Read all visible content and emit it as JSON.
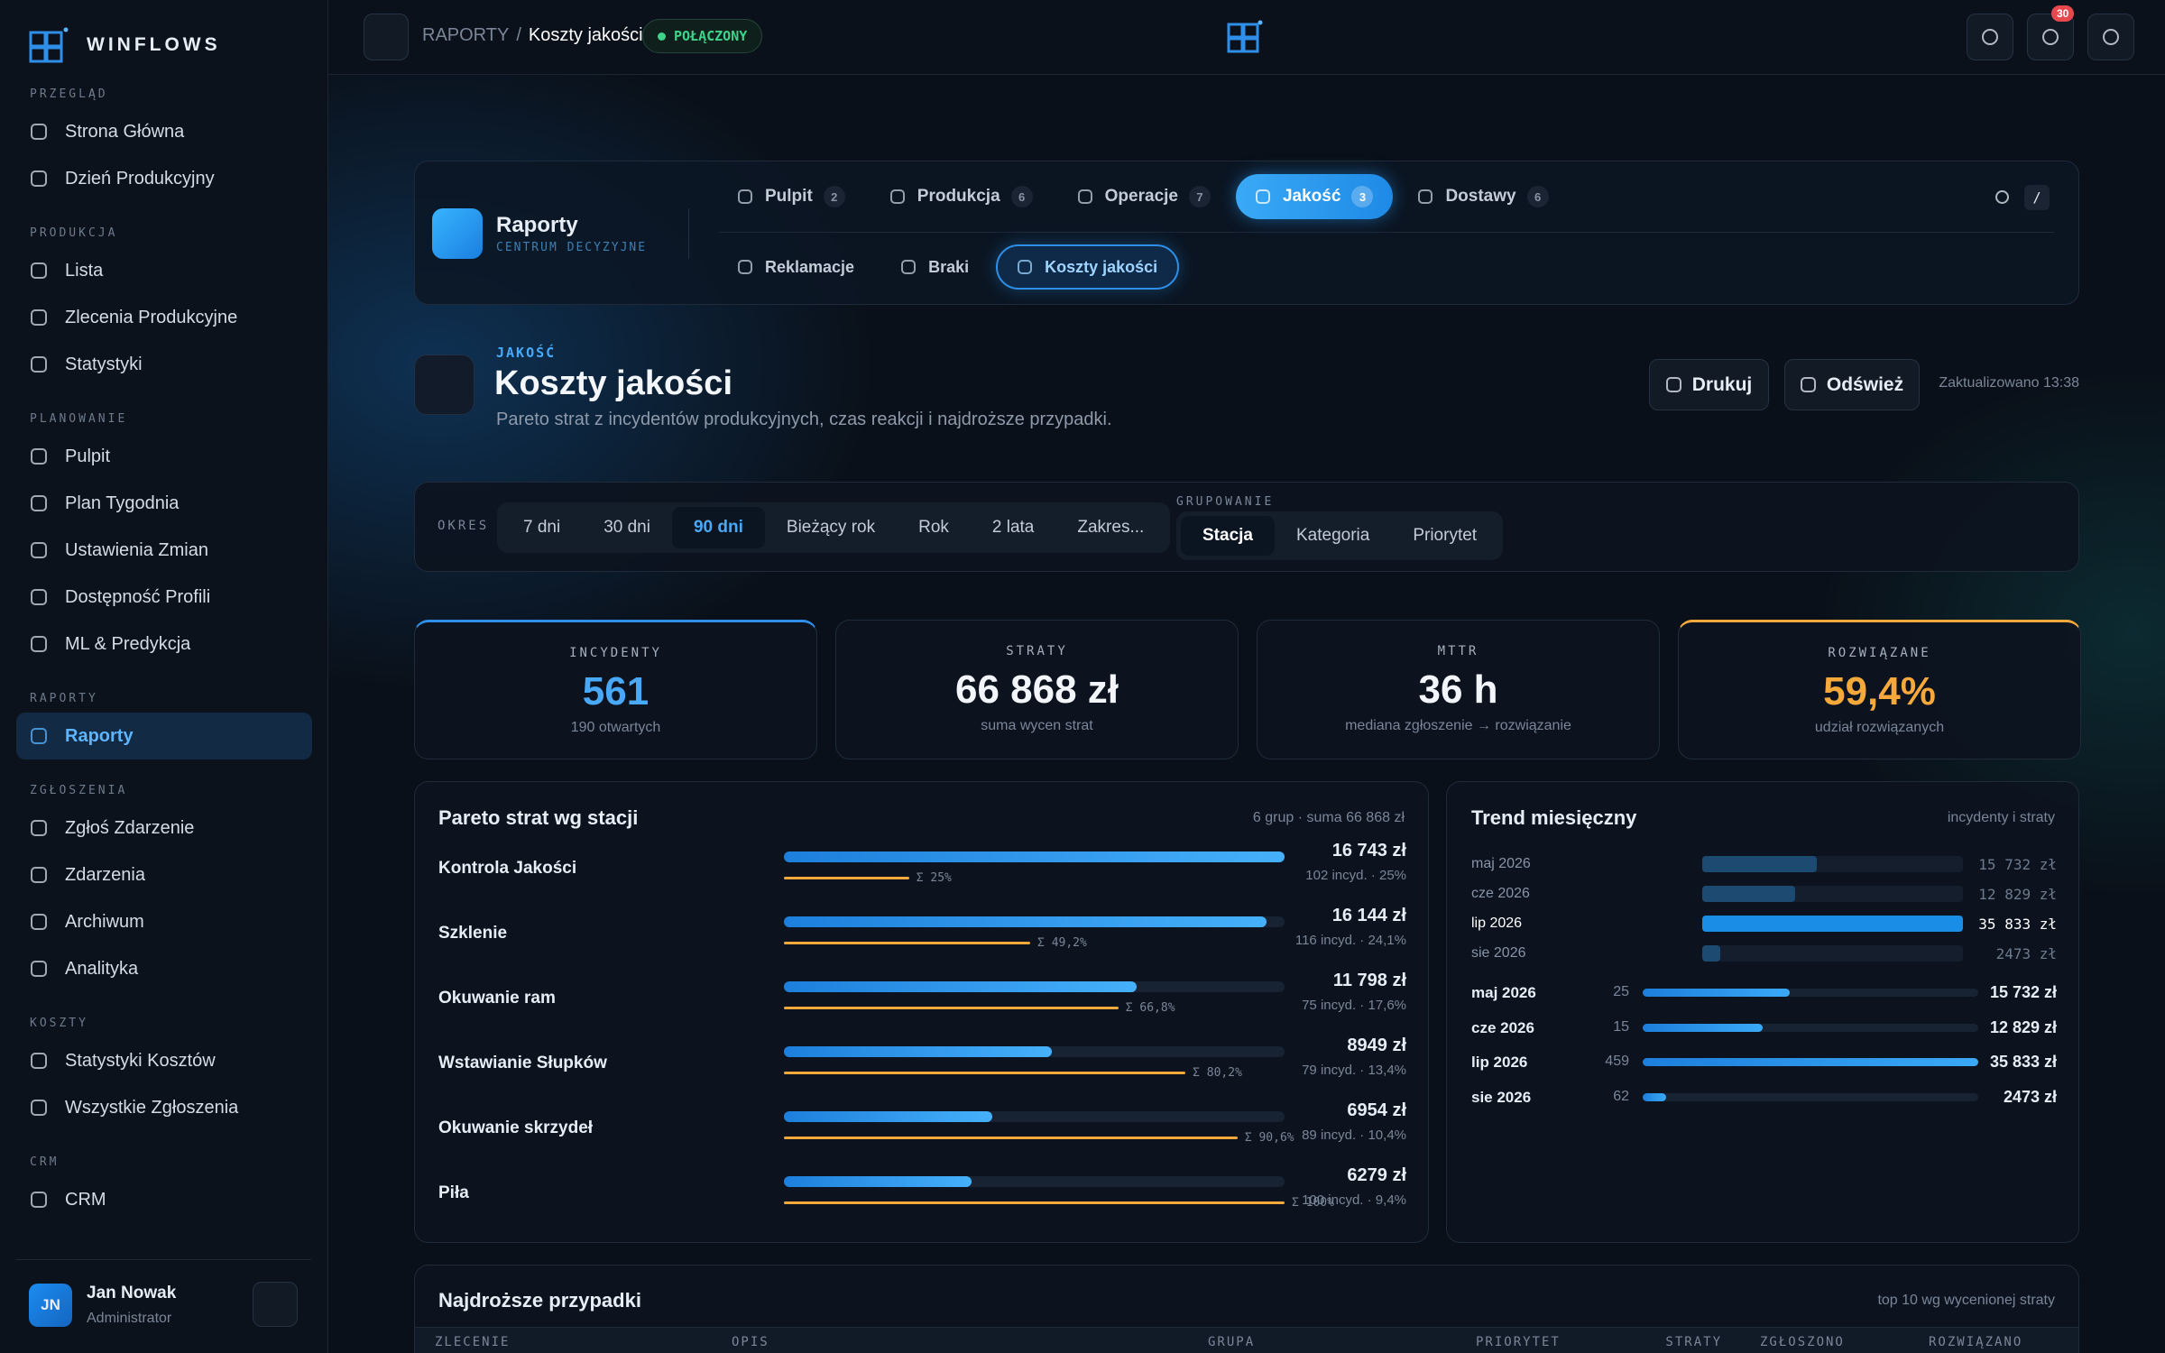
{
  "sidebar": {
    "brand": "WINFLOWS",
    "sections": [
      {
        "title": "PRZEGLĄD",
        "items": [
          {
            "label": "Strona Główna"
          },
          {
            "label": "Dzień Produkcyjny"
          }
        ]
      },
      {
        "title": "PRODUKCJA",
        "items": [
          {
            "label": "Lista"
          },
          {
            "label": "Zlecenia Produkcyjne"
          },
          {
            "label": "Statystyki"
          }
        ]
      },
      {
        "title": "PLANOWANIE",
        "items": [
          {
            "label": "Pulpit"
          },
          {
            "label": "Plan Tygodnia"
          },
          {
            "label": "Ustawienia Zmian"
          },
          {
            "label": "Dostępność Profili"
          },
          {
            "label": "ML & Predykcja"
          }
        ]
      },
      {
        "title": "RAPORTY",
        "items": [
          {
            "label": "Raporty",
            "active": true
          }
        ]
      },
      {
        "title": "ZGŁOSZENIA",
        "items": [
          {
            "label": "Zgłoś Zdarzenie"
          },
          {
            "label": "Zdarzenia"
          },
          {
            "label": "Archiwum"
          },
          {
            "label": "Analityka"
          }
        ]
      },
      {
        "title": "KOSZTY",
        "items": [
          {
            "label": "Statystyki Kosztów"
          },
          {
            "label": "Wszystkie Zgłoszenia"
          }
        ]
      },
      {
        "title": "CRM",
        "items": [
          {
            "label": "CRM"
          }
        ]
      }
    ],
    "user": {
      "initials": "JN",
      "name": "Jan Nowak",
      "role": "Administrator"
    }
  },
  "topbar": {
    "breadcrumb": {
      "section": "RAPORTY",
      "separator": "/",
      "current": "Koszty jakości"
    },
    "status": "POŁĄCZONY",
    "notifications": 30
  },
  "reports_panel": {
    "title": "Raporty",
    "subtitle": "CENTRUM DECYZYJNE",
    "tabs": [
      {
        "label": "Pulpit",
        "count": 2
      },
      {
        "label": "Produkcja",
        "count": 6
      },
      {
        "label": "Operacje",
        "count": 7
      },
      {
        "label": "Jakość",
        "count": 3
      },
      {
        "label": "Dostawy",
        "count": 6
      }
    ],
    "active_tab": 3,
    "search_key": "/",
    "subtabs": [
      "Reklamacje",
      "Braki",
      "Koszty jakości"
    ],
    "active_subtab": 2
  },
  "header": {
    "eyebrow": "JAKOŚĆ",
    "title": "Koszty jakości",
    "description": "Pareto strat z incydentów produkcyjnych, czas reakcji i najdroższe przypadki.",
    "buttons": [
      "Drukuj",
      "Odśwież"
    ],
    "updated": "Zaktualizowano 13:38"
  },
  "filters": {
    "period": {
      "label": "OKRES",
      "options": [
        "7 dni",
        "30 dni",
        "90 dni",
        "Bieżący rok",
        "Rok",
        "2 lata",
        "Zakres..."
      ],
      "active": 2
    },
    "grouping": {
      "label": "GRUPOWANIE",
      "options": [
        "Stacja",
        "Kategoria",
        "Priorytet"
      ],
      "active": 0
    }
  },
  "kpis": [
    {
      "label": "INCYDENTY",
      "value": "561",
      "sub": "190 otwartych",
      "color": "#4aa9f7",
      "accent": "#2f8fe8"
    },
    {
      "label": "STRATY",
      "value": "66 868 zł",
      "sub": "suma wycen strat",
      "color": "#f2f5f9"
    },
    {
      "label": "MTTR",
      "value": "36 h",
      "sub": "mediana zgłoszenie → rozwiązanie",
      "color": "#f2f5f9"
    },
    {
      "label": "ROZWIĄZANE",
      "value": "59,4%",
      "sub": "udział rozwiązanych",
      "color": "#f5a93a",
      "accent": "#f5a93a"
    }
  ],
  "pareto": {
    "title": "Pareto strat wg stacji",
    "meta": "6 grup · suma 66 868 zł",
    "rows": [
      {
        "name": "Kontrola Jakości",
        "loss": 16743,
        "loss_label": "16 743 zł",
        "detail": "102 incyd. · 25%",
        "cum": 25,
        "cum_label": "Σ 25%"
      },
      {
        "name": "Szklenie",
        "loss": 16144,
        "loss_label": "16 144 zł",
        "detail": "116 incyd. · 24,1%",
        "cum": 49.2,
        "cum_label": "Σ 49,2%"
      },
      {
        "name": "Okuwanie ram",
        "loss": 11798,
        "loss_label": "11 798 zł",
        "detail": "75 incyd. · 17,6%",
        "cum": 66.8,
        "cum_label": "Σ 66,8%"
      },
      {
        "name": "Wstawianie Słupków",
        "loss": 8949,
        "loss_label": "8949 zł",
        "detail": "79 incyd. · 13,4%",
        "cum": 80.2,
        "cum_label": "Σ 80,2%"
      },
      {
        "name": "Okuwanie skrzydeł",
        "loss": 6954,
        "loss_label": "6954 zł",
        "detail": "89 incyd. · 10,4%",
        "cum": 90.6,
        "cum_label": "Σ 90,6%"
      },
      {
        "name": "Piła",
        "loss": 6279,
        "loss_label": "6279 zł",
        "detail": "100 incyd. · 9,4%",
        "cum": 100,
        "cum_label": "Σ 100%"
      }
    ]
  },
  "trend": {
    "title": "Trend miesięczny",
    "meta": "incydenty i straty",
    "highlight": 2,
    "months": [
      {
        "label": "maj 2026",
        "incidents": 25,
        "loss": 15732,
        "loss_label": "15 732 zł"
      },
      {
        "label": "cze 2026",
        "incidents": 15,
        "loss": 12829,
        "loss_label": "12 829 zł"
      },
      {
        "label": "lip 2026",
        "incidents": 459,
        "loss": 35833,
        "loss_label": "35 833 zł"
      },
      {
        "label": "sie 2026",
        "incidents": 62,
        "loss": 2473,
        "loss_label": "2473 zł"
      }
    ]
  },
  "table": {
    "title": "Najdroższe przypadki",
    "meta": "top 10 wg wycenionej straty",
    "columns": [
      "ZLECENIE",
      "OPIS",
      "GRUPA",
      "PRIORYTET",
      "STRATY",
      "ZGŁOSZONO",
      "ROZWIĄZANO"
    ]
  }
}
